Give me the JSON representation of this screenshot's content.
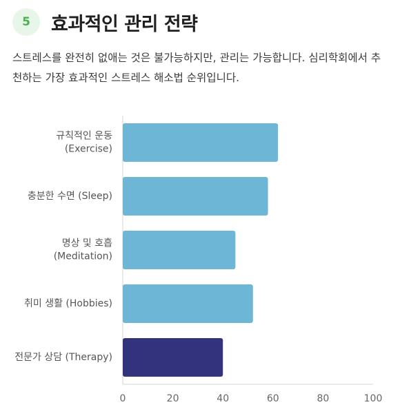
{
  "header": {
    "step": "5",
    "title": "효과적인 관리 전략"
  },
  "description": "스트레스를 완전히 없애는 것은 불가능하지만, 관리는 가능합니다. 심리학회에서 추천하는 가장 효과적인 스트레스 해소법 순위입니다.",
  "chart_data": {
    "type": "bar",
    "orientation": "horizontal",
    "categories": [
      [
        "규칙적인 운동",
        "(Exercise)"
      ],
      [
        "충분한 수면 (Sleep)"
      ],
      [
        "명상 및 호흡",
        "(Meditation)"
      ],
      [
        "취미 생활 (Hobbies)"
      ],
      [
        "전문가 상담 (Therapy)"
      ]
    ],
    "values": [
      62,
      58,
      45,
      52,
      40
    ],
    "colors": [
      "#6db6d5",
      "#6db6d5",
      "#6db6d5",
      "#6db6d5",
      "#33327d"
    ],
    "xlim": [
      0,
      100
    ],
    "xticks": [
      0,
      20,
      40,
      60,
      80,
      100
    ],
    "grid": false,
    "title": "",
    "xlabel": "",
    "ylabel": ""
  }
}
